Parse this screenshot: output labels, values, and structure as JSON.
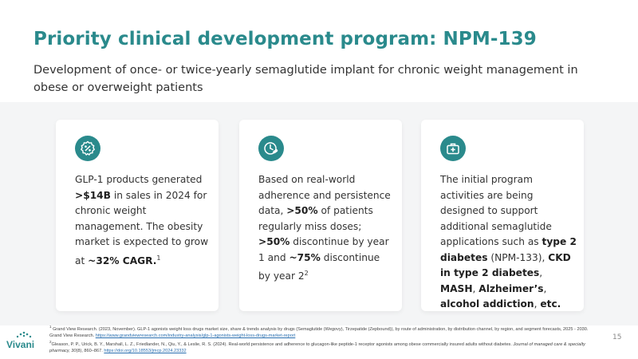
{
  "header": {
    "title": "Priority clinical development program: NPM-139",
    "subtitle": "Development of once- or twice-yearly semaglutide implant for chronic weight management in obese or overweight patients"
  },
  "cards": [
    {
      "icon": "percent-badge-icon",
      "parts": [
        {
          "t": "GLP-1 products generated "
        },
        {
          "t": ">$14B",
          "b": true
        },
        {
          "t": " in sales in 2024 for chronic weight management. The obesity market is expected to grow at "
        },
        {
          "t": "~32% CAGR.",
          "b": true
        },
        {
          "t": "1",
          "sup": true
        }
      ]
    },
    {
      "icon": "clock-pill-icon",
      "parts": [
        {
          "t": "Based on real-world adherence and persistence data, "
        },
        {
          "t": ">50%",
          "b": true
        },
        {
          "t": " of patients regularly miss doses; "
        },
        {
          "t": ">50%",
          "b": true
        },
        {
          "t": " discontinue by year 1 and "
        },
        {
          "t": "~75%",
          "b": true
        },
        {
          "t": " discontinue by year 2"
        },
        {
          "t": "2",
          "sup": true
        }
      ]
    },
    {
      "icon": "medical-kit-icon",
      "parts": [
        {
          "t": "The initial program activities are being designed to support additional semaglutide applications such as "
        },
        {
          "t": "type 2 diabetes",
          "b": true
        },
        {
          "t": " (NPM-133), "
        },
        {
          "t": "CKD in type 2 diabetes",
          "b": true
        },
        {
          "t": ", "
        },
        {
          "t": "MASH",
          "b": true
        },
        {
          "t": ", "
        },
        {
          "t": "Alzheimer’s",
          "b": true
        },
        {
          "t": ", "
        },
        {
          "t": "alcohol addiction",
          "b": true
        },
        {
          "t": ", "
        },
        {
          "t": "etc.",
          "b": true
        }
      ]
    }
  ],
  "footnotes": [
    {
      "num": "1",
      "text": " Grand View Research. (2023, November). GLP-1 agonists weight loss drugs market size, share & trends analysis by drugs (Semaglutide (Wegovy), Tirzepatide (Zepbound)), by route of administration, by distribution channel, by region, and segment forecasts, 2025 - 2030. Grand View Research. ",
      "link": "https://www.grandviewresearch.com/industry-analysis/glp-1-agonists-weight-loss-drugs-market-report"
    },
    {
      "num": "2",
      "text_a": "Gleason, P. P., Urick, B. Y., Marshall, L. Z., Friedlander, N., Qiu, Y., & Leslie, R. S. (2024). Real-world persistence and adherence to glucagon-like peptide-1 receptor agonists among obese commercially insured adults without diabetes. ",
      "journal": "Journal of managed care & specialty pharmacy, 30",
      "text_b": "(8), 860–867. ",
      "link": "https://doi.org/10.18553/jmcp.2024.23332"
    }
  ],
  "brand": {
    "name": "Vivani",
    "accent": "#2a8a8c"
  },
  "page_number": "15"
}
